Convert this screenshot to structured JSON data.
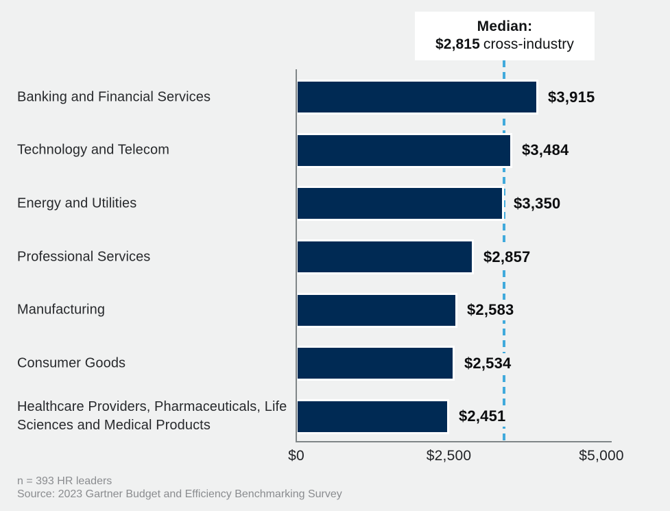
{
  "chart": {
    "median_callout": {
      "title": "Median:",
      "value": "$2,815",
      "suffix": "cross-industry"
    },
    "footnote_n": "n = 393 HR leaders",
    "footnote_source": "Source: 2023 Gartner Budget and Efficiency Benchmarking Survey"
  },
  "chart_data": {
    "type": "bar",
    "orientation": "horizontal",
    "title": "Median: $2,815 cross-industry",
    "categories": [
      "Banking and Financial Services",
      "Technology and Telecom",
      "Energy and Utilities",
      "Professional Services",
      "Manufacturing",
      "Consumer Goods",
      "Healthcare Providers, Pharmaceuticals, Life Sciences and Medical Products"
    ],
    "values": [
      3915,
      3484,
      3350,
      2857,
      2583,
      2534,
      2451
    ],
    "value_labels": [
      "$3,915",
      "$3,484",
      "$3,350",
      "$2,857",
      "$2,583",
      "$2,534",
      "$2,451"
    ],
    "median_value": 2815,
    "x_ticks": [
      {
        "label": "$0",
        "value": 0
      },
      {
        "label": "$2,500",
        "value": 2500
      },
      {
        "label": "$5,000",
        "value": 5000
      }
    ],
    "xlim": [
      0,
      5200
    ],
    "grid": false,
    "legend_position": "none",
    "colors": {
      "bar": "#002a54",
      "median_line": "#41aadc",
      "axis": "#7f8587",
      "background": "#f0f1f1",
      "category_text": "#27292c",
      "value_text": "#0c0d0f",
      "footnote_text": "#8a8c8f",
      "callout_bg": "#ffffff"
    }
  }
}
